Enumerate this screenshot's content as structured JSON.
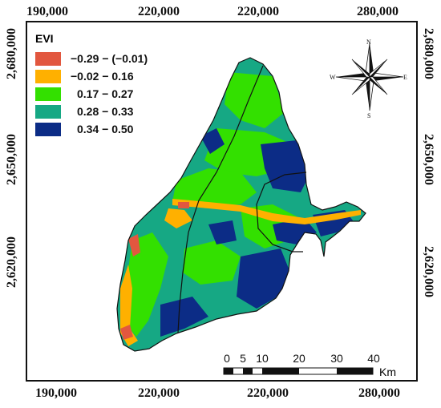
{
  "axes": {
    "top_ticks": [
      "190,000",
      "220,000",
      "220,000",
      "280,000"
    ],
    "bottom_ticks": [
      "190,000",
      "220,000",
      "220,000",
      "280,000"
    ],
    "left_ticks": [
      "2,680,000",
      "2,650,000",
      "2,620,000"
    ],
    "right_ticks": [
      "2,680,000",
      "2,650,000",
      "2,620,000"
    ]
  },
  "legend": {
    "title": "EVI",
    "items": [
      {
        "label": "−0.29 − (−0.01)",
        "color": "#e2573f"
      },
      {
        "label": "−0.02 − 0.16",
        "color": "#ffb000"
      },
      {
        "label": "0.17 − 0.27",
        "color": "#33e000"
      },
      {
        "label": "0.28 − 0.33",
        "color": "#16a884"
      },
      {
        "label": "0.34 − 0.50",
        "color": "#0c2c86"
      }
    ]
  },
  "compass": {
    "n": "N",
    "s": "S",
    "e": "E",
    "w": "W"
  },
  "scale_bar": {
    "labels": [
      "0",
      "5",
      "10",
      "20",
      "30",
      "40"
    ],
    "unit": "Km"
  },
  "colors": {
    "water_dark": "#0c2c86",
    "mid_green": "#16a884",
    "bright_green": "#33e000",
    "orange": "#ffb000",
    "red": "#e2573f"
  }
}
